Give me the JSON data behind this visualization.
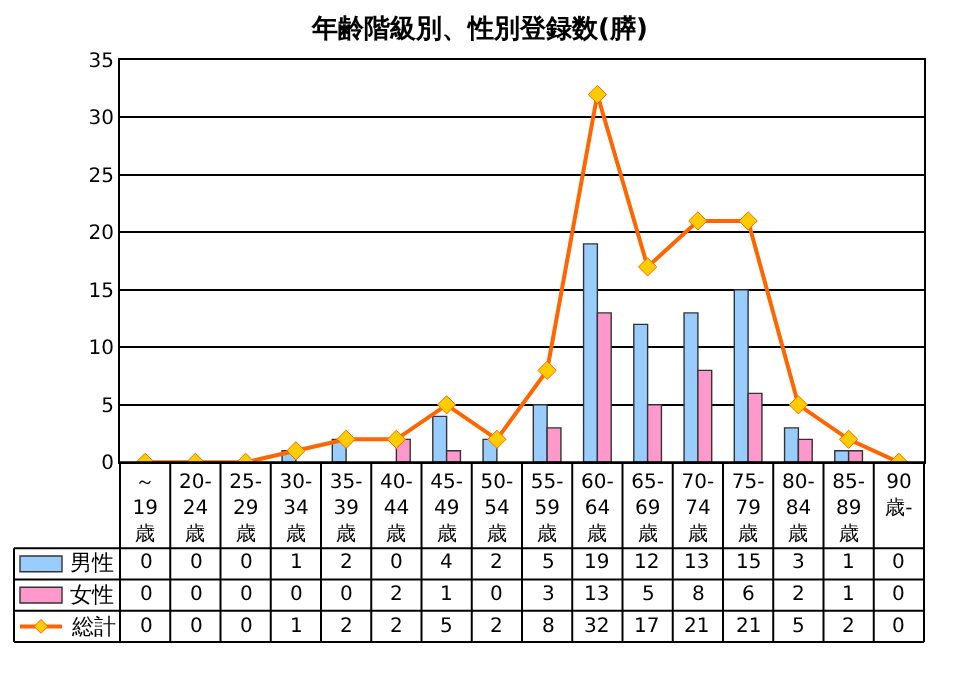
{
  "chart_data": {
    "type": "bar",
    "title": "年齢階級別、性別登録数(膵)",
    "categories": [
      "～19歳",
      "20-24歳",
      "25-29歳",
      "30-34歳",
      "35-39歳",
      "40-44歳",
      "45-49歳",
      "50-54歳",
      "55-59歳",
      "60-64歳",
      "65-69歳",
      "70-74歳",
      "75-79歳",
      "80-84歳",
      "85-89歳",
      "90歳-"
    ],
    "series": [
      {
        "name": "男性",
        "color": "#99ccff",
        "values": [
          0,
          0,
          0,
          1,
          2,
          0,
          4,
          2,
          5,
          19,
          12,
          13,
          15,
          3,
          1,
          0
        ]
      },
      {
        "name": "女性",
        "color": "#ff99cc",
        "values": [
          0,
          0,
          0,
          0,
          0,
          2,
          1,
          0,
          3,
          13,
          5,
          8,
          6,
          2,
          1,
          0
        ]
      },
      {
        "name": "総計",
        "type": "line",
        "color": "#ff6600",
        "marker": "diamond",
        "values": [
          0,
          0,
          0,
          1,
          2,
          2,
          5,
          2,
          8,
          32,
          17,
          21,
          21,
          5,
          2,
          0
        ]
      }
    ],
    "ylim": [
      0,
      35
    ],
    "yticks": [
      0,
      5,
      10,
      15,
      20,
      25,
      30,
      35
    ],
    "grid": "y",
    "data_labels": true,
    "legend": "bottom left"
  }
}
